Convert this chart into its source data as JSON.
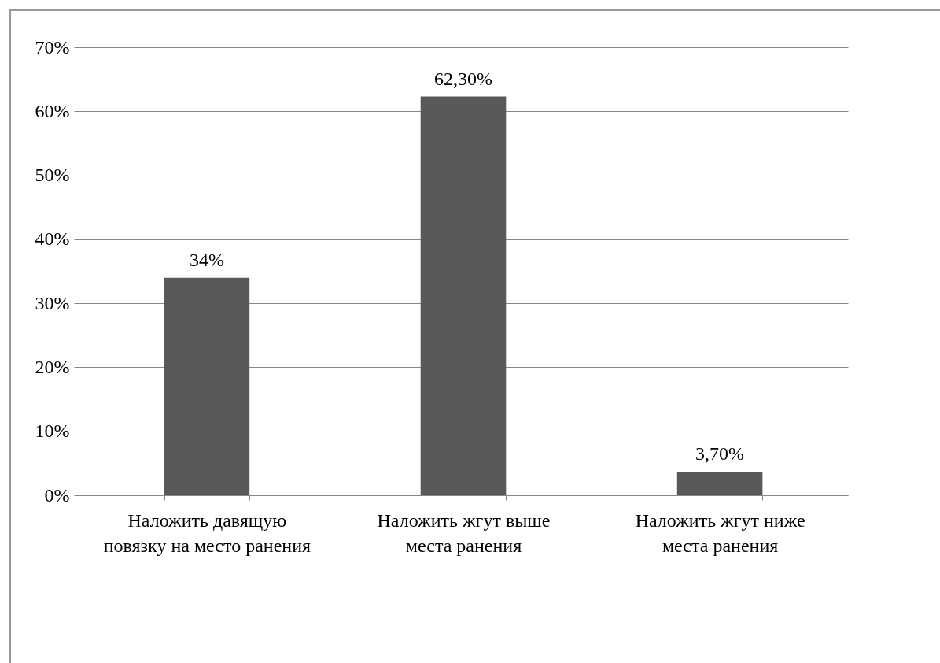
{
  "chart_data": {
    "type": "bar",
    "categories": [
      "Наложить давящую повязку на место ранения",
      "Наложить жгут выше места ранения",
      "Наложить жгут ниже места ранения"
    ],
    "values": [
      34,
      62.3,
      3.7
    ],
    "value_labels": [
      "34%",
      "62,30%",
      "3,70%"
    ],
    "color": "#595959",
    "ylim": [
      0,
      70
    ],
    "yticks": [
      {
        "value": 0,
        "label": "0%"
      },
      {
        "value": 10,
        "label": "10%"
      },
      {
        "value": 20,
        "label": "20%"
      },
      {
        "value": 30,
        "label": "30%"
      },
      {
        "value": 40,
        "label": "40%"
      },
      {
        "value": 50,
        "label": "50%"
      },
      {
        "value": 60,
        "label": "60%"
      },
      {
        "value": 70,
        "label": "70%"
      }
    ],
    "grid": "y"
  }
}
